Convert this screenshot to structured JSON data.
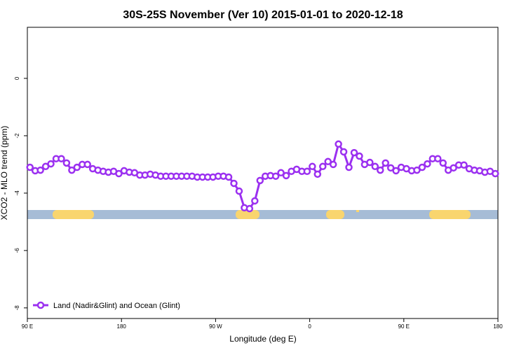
{
  "chart_data": {
    "type": "line",
    "title": "30S-25S November (Ver 10)   2015-01-01 to 2020-12-18",
    "x_label": "Longitude (deg E)",
    "y_label": "XCO2 - MLO trend (ppm)",
    "x": [
      92.5,
      97.5,
      102.5,
      107.5,
      112.5,
      117.5,
      122.5,
      127.5,
      132.5,
      137.5,
      142.5,
      147.5,
      152.5,
      157.5,
      162.5,
      167.5,
      172.5,
      177.5,
      182.5,
      187.5,
      192.5,
      197.5,
      202.5,
      207.5,
      212.5,
      217.5,
      222.5,
      227.5,
      232.5,
      237.5,
      242.5,
      247.5,
      252.5,
      257.5,
      262.5,
      267.5,
      272.5,
      277.5,
      282.5,
      287.5,
      292.5,
      297.5,
      302.5,
      307.5,
      312.5,
      317.5,
      322.5,
      327.5,
      332.5,
      337.5,
      342.5,
      347.5,
      352.5,
      357.5,
      362.5,
      367.5,
      372.5,
      377.5,
      382.5,
      387.5,
      392.5,
      397.5,
      402.5,
      407.5,
      412.5,
      417.5,
      422.5,
      427.5,
      432.5,
      437.5,
      442.5,
      447.5,
      452.5,
      457.5,
      462.5,
      467.5,
      472.5,
      477.5,
      482.5,
      487.5,
      492.5,
      497.5,
      502.5,
      507.5,
      512.5,
      517.5,
      522.5,
      527.5,
      532.5,
      537.5
    ],
    "series": [
      {
        "name": "Land (Nadir&Glint) and Ocean (Glint)",
        "color": "#9b30f0",
        "values": [
          -3.1,
          -3.22,
          -3.2,
          -3.07,
          -2.98,
          -2.8,
          -2.8,
          -2.95,
          -3.2,
          -3.1,
          -3.0,
          -3.0,
          -3.15,
          -3.2,
          -3.24,
          -3.27,
          -3.24,
          -3.32,
          -3.22,
          -3.27,
          -3.29,
          -3.37,
          -3.37,
          -3.34,
          -3.37,
          -3.41,
          -3.41,
          -3.41,
          -3.41,
          -3.41,
          -3.41,
          -3.41,
          -3.44,
          -3.44,
          -3.44,
          -3.44,
          -3.41,
          -3.41,
          -3.44,
          -3.66,
          -3.93,
          -4.51,
          -4.54,
          -4.27,
          -3.56,
          -3.41,
          -3.39,
          -3.41,
          -3.29,
          -3.39,
          -3.24,
          -3.17,
          -3.24,
          -3.24,
          -3.07,
          -3.34,
          -3.07,
          -2.9,
          -3.0,
          -2.29,
          -2.56,
          -3.1,
          -2.59,
          -2.71,
          -3.0,
          -2.93,
          -3.07,
          -3.2,
          -2.95,
          -3.12,
          -3.22,
          -3.1,
          -3.15,
          -3.22,
          -3.2,
          -3.1,
          -2.98,
          -2.8,
          -2.8,
          -2.95,
          -3.2,
          -3.12,
          -3.02,
          -3.02,
          -3.15,
          -3.2,
          -3.22,
          -3.27,
          -3.24,
          -3.32
        ]
      }
    ],
    "xlim": [
      90,
      540
    ],
    "xticks": [
      {
        "value": 90,
        "label": "90 E"
      },
      180,
      {
        "value": 270,
        "label": "90 W"
      },
      {
        "value": 360,
        "label": "0"
      },
      {
        "value": 450,
        "label": "90 E"
      },
      {
        "value": 540,
        "label": "180"
      }
    ],
    "ylim": [
      -8.37,
      1.78
    ],
    "yticks": [
      -8,
      -6,
      -4,
      -2,
      0
    ],
    "legend": "bottom-left"
  }
}
